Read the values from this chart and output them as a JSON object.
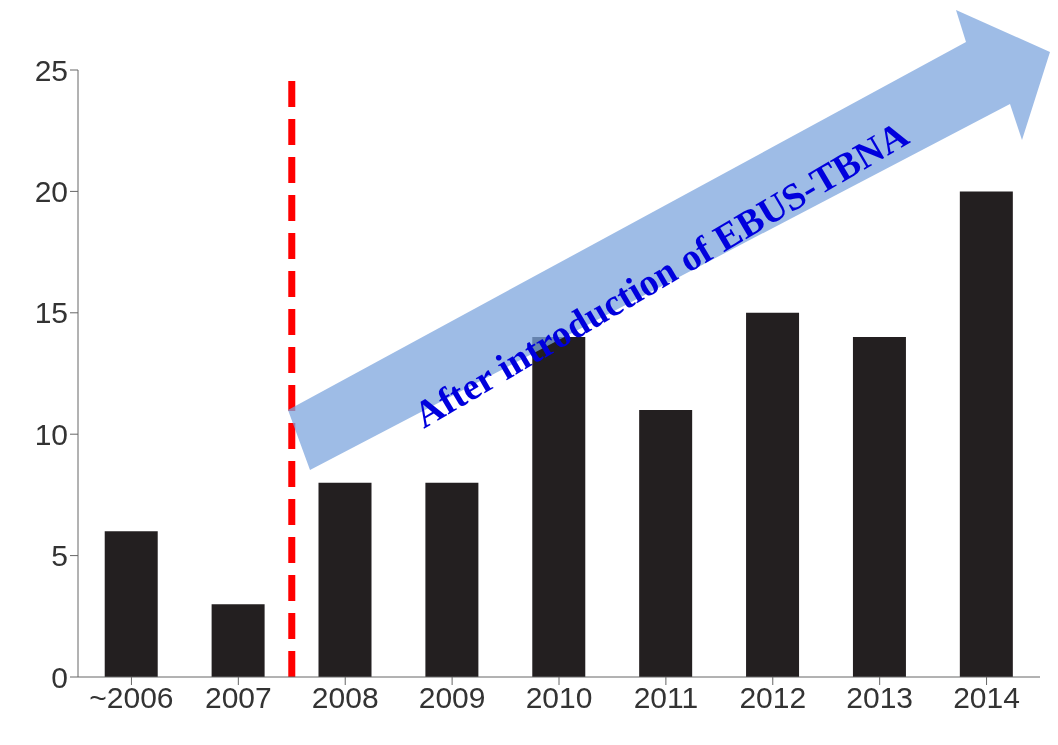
{
  "chart_data": {
    "type": "bar",
    "categories": [
      "~2006",
      "2007",
      "2008",
      "2009",
      "2010",
      "2011",
      "2012",
      "2013",
      "2014"
    ],
    "values": [
      6,
      3,
      8,
      8,
      14,
      11,
      15,
      14,
      20
    ],
    "color": "#231f20",
    "ylim": [
      0,
      25
    ],
    "yticks": [
      0,
      5,
      10,
      15,
      20,
      25
    ],
    "ref_lines": [
      {
        "axis": "x",
        "value": "2008",
        "color": "#ff0000",
        "line_style": "dashed"
      }
    ],
    "annotations": [
      "After introduction of EBUS-TBNA"
    ]
  }
}
